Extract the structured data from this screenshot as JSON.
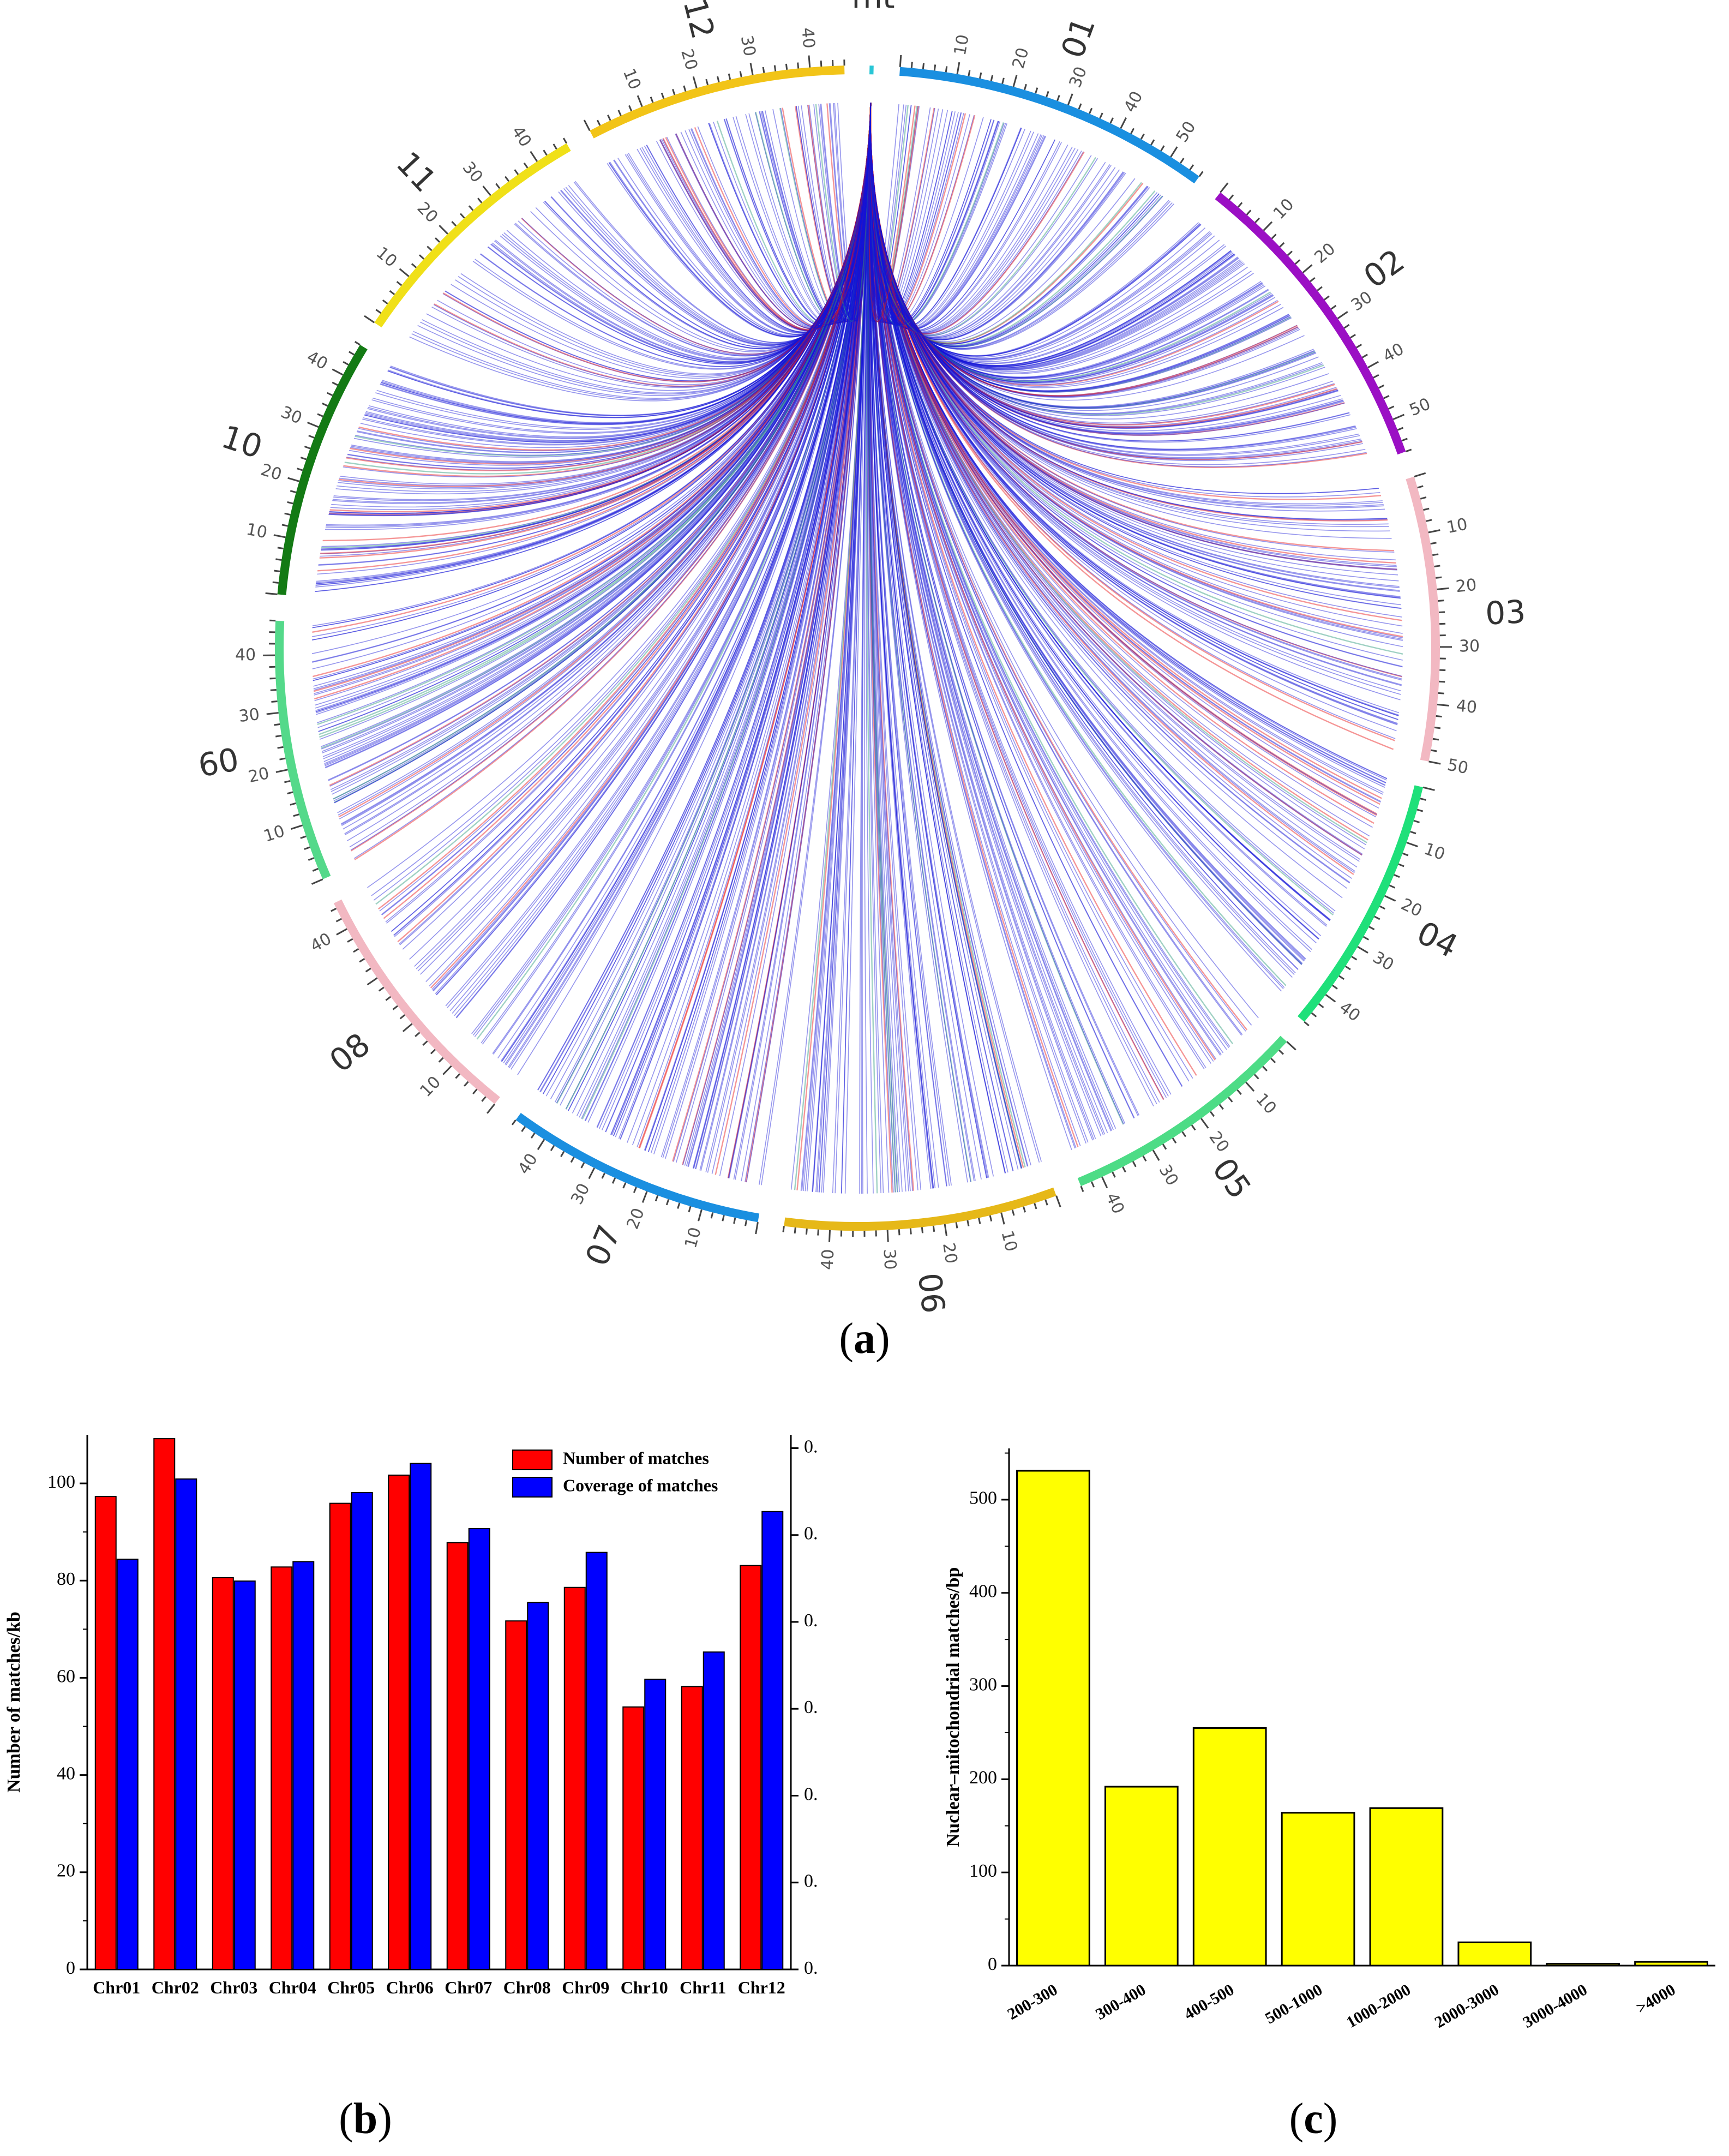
{
  "panels": {
    "a": {
      "label_open": "(",
      "letter": "a",
      "label_close": ")"
    },
    "b": {
      "label_open": "(",
      "letter": "b",
      "label_close": ")"
    },
    "c": {
      "label_open": "(",
      "letter": "c",
      "label_close": ")"
    }
  },
  "chart_data": [
    {
      "type": "chord",
      "panel": "a",
      "segments": [
        {
          "name": "mt",
          "length": 0.5,
          "color": "#29c6d6",
          "ticks": []
        },
        {
          "name": "01",
          "length": 56,
          "color": "#1a8fe0",
          "ticks": [
            10,
            20,
            30,
            40,
            50
          ]
        },
        {
          "name": "02",
          "length": 56,
          "color": "#9b0fc4",
          "ticks": [
            10,
            20,
            30,
            40,
            50
          ]
        },
        {
          "name": "03",
          "length": 50,
          "color": "#f2b8c2",
          "ticks": [
            10,
            20,
            30,
            40,
            50
          ]
        },
        {
          "name": "04",
          "length": 46,
          "color": "#1fe07a",
          "ticks": [
            10,
            20,
            30,
            40
          ]
        },
        {
          "name": "05",
          "length": 44,
          "color": "#4ddc86",
          "ticks": [
            10,
            20,
            30,
            40
          ]
        },
        {
          "name": "06",
          "length": 48,
          "color": "#e6b818",
          "ticks": [
            10,
            20,
            30,
            40
          ]
        },
        {
          "name": "07",
          "length": 46,
          "color": "#1a8fe0",
          "ticks": [
            10,
            20,
            30,
            40
          ]
        },
        {
          "name": "08",
          "length": 45,
          "color": "#f2b8c2",
          "ticks": [
            10,
            40
          ]
        },
        {
          "name": "60",
          "length": 46,
          "color": "#54d98a",
          "ticks": [
            10,
            20,
            30,
            40
          ]
        },
        {
          "name": "10",
          "length": 46,
          "color": "#137a14",
          "ticks": [
            10,
            20,
            30,
            40
          ]
        },
        {
          "name": "11",
          "length": 46,
          "color": "#f0e018",
          "ticks": [
            10,
            20,
            30,
            40
          ]
        },
        {
          "name": "12",
          "length": 46,
          "color": "#f2c418",
          "ticks": [
            10,
            20,
            30,
            40
          ]
        }
      ],
      "link_colors": [
        "#1414d8",
        "#e81414",
        "#2a9a7a"
      ]
    },
    {
      "type": "bar",
      "panel": "b",
      "categories": [
        "Chr01",
        "Chr02",
        "Chr03",
        "Chr04",
        "Chr05",
        "Chr06",
        "Chr07",
        "Chr08",
        "Chr09",
        "Chr10",
        "Chr11",
        "Chr12"
      ],
      "series": [
        {
          "name": "Number of matches",
          "color": "#ff0000",
          "values": [
            97.3,
            109.2,
            80.6,
            82.8,
            95.9,
            101.7,
            87.8,
            71.7,
            78.6,
            54.0,
            58.2,
            83.1
          ]
        },
        {
          "name": "Coverage of matches",
          "color": "#0000ff",
          "values": [
            84.4,
            100.9,
            79.9,
            83.9,
            98.1,
            104.1,
            90.7,
            75.5,
            85.8,
            59.7,
            65.3,
            94.2
          ]
        }
      ],
      "ylabel": "Number of matches/kb",
      "ylim": [
        0,
        110
      ],
      "yticks": [
        0,
        20,
        40,
        60,
        80,
        100
      ],
      "y2ticklabels": [
        "0.",
        "0.",
        "0.",
        "0.",
        "0.",
        "0.",
        "0."
      ],
      "legend": "top-right"
    },
    {
      "type": "bar",
      "panel": "c",
      "categories": [
        "200-300",
        "300-400",
        "400-500",
        "500-1000",
        "1000-2000",
        "2000-3000",
        "3000-4000",
        ">4000"
      ],
      "values": [
        531,
        192,
        255,
        164,
        169,
        25,
        2,
        4
      ],
      "color": "#ffff00",
      "ylabel": "Nuclear–mitochondrial matches/bp",
      "ylim": [
        0,
        555
      ],
      "yticks": [
        0,
        100,
        200,
        300,
        400,
        500
      ]
    }
  ]
}
